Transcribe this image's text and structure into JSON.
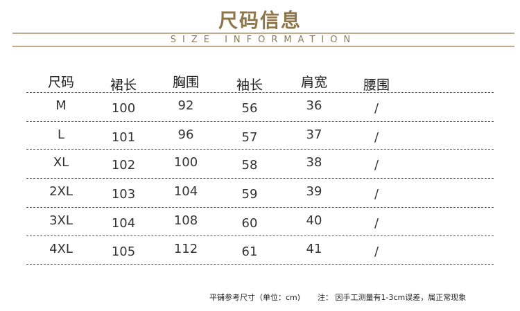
{
  "title": "尺码信息",
  "subtitle": "SIZE INFORMATION",
  "colors": {
    "title": "#8d7648",
    "rule": "#c5a98b"
  },
  "table": {
    "headers": [
      "尺码",
      "裙长",
      "胸围",
      "袖长",
      "肩宽",
      "腰围"
    ],
    "rows": [
      [
        "M",
        "100",
        "92",
        "56",
        "36",
        "/"
      ],
      [
        "L",
        "101",
        "96",
        "57",
        "37",
        "/"
      ],
      [
        "XL",
        "102",
        "100",
        "58",
        "38",
        "/"
      ],
      [
        "2XL",
        "103",
        "104",
        "59",
        "39",
        "/"
      ],
      [
        "3XL",
        "104",
        "108",
        "60",
        "40",
        "/"
      ],
      [
        "4XL",
        "105",
        "112",
        "61",
        "41",
        "/"
      ]
    ]
  },
  "notes": {
    "unit": "平铺参考尺寸（单位：cm)",
    "disclaimer": "注： 因手工测量有1-3cm误差，属正常现象"
  }
}
